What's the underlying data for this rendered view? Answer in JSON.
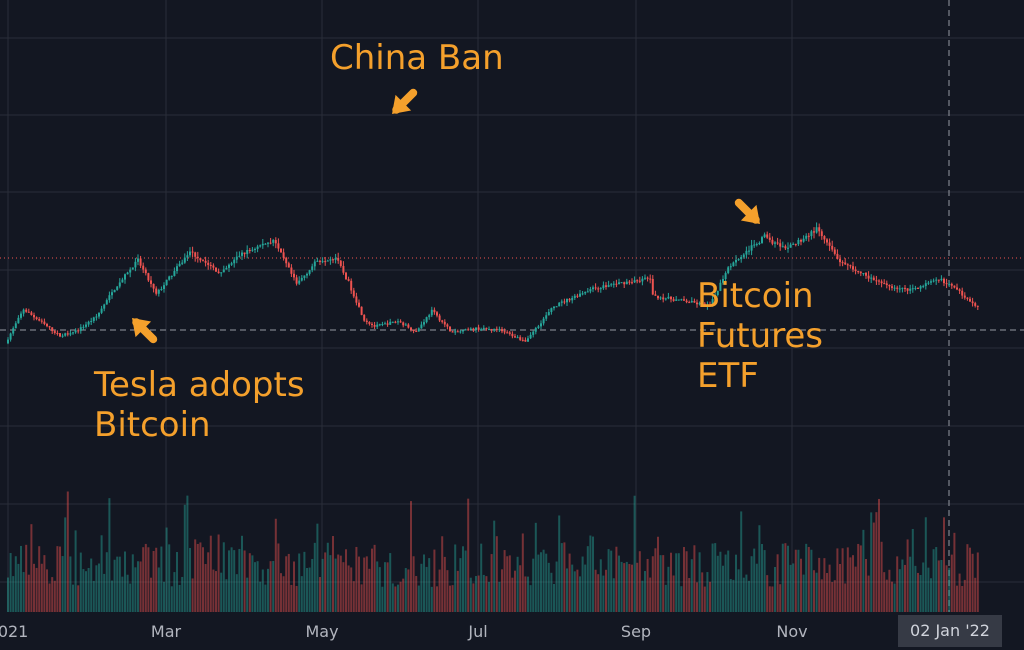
{
  "chart_data": {
    "type": "candlestick",
    "instrument": "BTC",
    "x_axis": {
      "tick_labels": [
        "2021",
        "Mar",
        "May",
        "Jul",
        "Sep",
        "Nov"
      ],
      "crosshair_label": "02 Jan '22"
    },
    "grid": true,
    "colors": {
      "background": "#131722",
      "up": "#26a69a",
      "down": "#ef5350",
      "annotation": "#f4a02c",
      "grid": "#2a2e39"
    },
    "price_path": [
      [
        "2021-01-01",
        29000
      ],
      [
        "2021-01-08",
        40500
      ],
      [
        "2021-01-15",
        36000
      ],
      [
        "2021-01-22",
        31500
      ],
      [
        "2021-01-29",
        33500
      ],
      [
        "2021-02-05",
        38000
      ],
      [
        "2021-02-12",
        47500
      ],
      [
        "2021-02-21",
        57000
      ],
      [
        "2021-02-28",
        45500
      ],
      [
        "2021-03-13",
        60000
      ],
      [
        "2021-03-25",
        52500
      ],
      [
        "2021-04-01",
        58800
      ],
      [
        "2021-04-14",
        64000
      ],
      [
        "2021-04-23",
        49000
      ],
      [
        "2021-05-01",
        57000
      ],
      [
        "2021-05-08",
        58000
      ],
      [
        "2021-05-13",
        49500
      ],
      [
        "2021-05-19",
        37000
      ],
      [
        "2021-05-23",
        34700
      ],
      [
        "2021-06-01",
        36500
      ],
      [
        "2021-06-08",
        33000
      ],
      [
        "2021-06-14",
        40000
      ],
      [
        "2021-06-22",
        32500
      ],
      [
        "2021-07-01",
        34000
      ],
      [
        "2021-07-10",
        33500
      ],
      [
        "2021-07-20",
        29800
      ],
      [
        "2021-07-31",
        41500
      ],
      [
        "2021-08-13",
        47000
      ],
      [
        "2021-08-23",
        49000
      ],
      [
        "2021-09-06",
        51000
      ],
      [
        "2021-09-07",
        45000
      ],
      [
        "2021-09-21",
        43000
      ],
      [
        "2021-09-29",
        41500
      ],
      [
        "2021-10-06",
        55000
      ],
      [
        "2021-10-20",
        65000
      ],
      [
        "2021-10-28",
        60500
      ],
      [
        "2021-11-09",
        67500
      ],
      [
        "2021-11-18",
        56500
      ],
      [
        "2021-12-04",
        49000
      ],
      [
        "2021-12-14",
        47000
      ],
      [
        "2021-12-27",
        50500
      ],
      [
        "2022-01-02",
        47000
      ],
      [
        "2022-01-09",
        41800
      ]
    ],
    "annotations": [
      {
        "lines": [
          "Tesla adopts",
          "Bitcoin"
        ],
        "date": "2021-02-08"
      },
      {
        "lines": [
          "China Ban"
        ],
        "date": "2021-05-12"
      },
      {
        "lines": [
          "Bitcoin",
          "Futures",
          "ETF"
        ],
        "date": "2021-10-19"
      }
    ]
  }
}
